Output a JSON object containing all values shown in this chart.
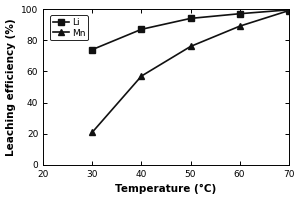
{
  "title": "",
  "xlabel": "Temperature (°C)",
  "ylabel": "Leaching efficiency (%)",
  "xlim": [
    20,
    70
  ],
  "ylim": [
    0,
    100
  ],
  "xticks": [
    20,
    30,
    40,
    50,
    60,
    70
  ],
  "yticks": [
    0,
    20,
    40,
    60,
    80,
    100
  ],
  "series": [
    {
      "label": "Li",
      "x": [
        30,
        40,
        50,
        60,
        70
      ],
      "y": [
        74,
        87,
        94,
        97,
        99.5
      ],
      "marker": "s",
      "color": "#111111",
      "linewidth": 1.2,
      "markersize": 4
    },
    {
      "label": "Mn",
      "x": [
        30,
        40,
        50,
        60,
        70
      ],
      "y": [
        21,
        57,
        76,
        89,
        99
      ],
      "marker": "^",
      "color": "#111111",
      "linewidth": 1.2,
      "markersize": 4
    }
  ],
  "legend_loc": "upper left",
  "legend_fontsize": 6.5,
  "tick_fontsize": 6.5,
  "xlabel_fontsize": 7.5,
  "ylabel_fontsize": 7.5,
  "background_color": "#ffffff"
}
